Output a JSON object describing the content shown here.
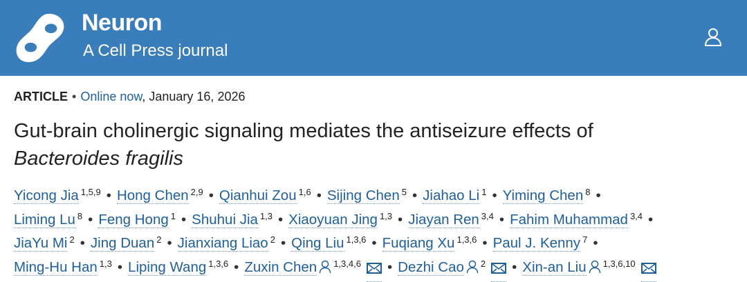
{
  "header": {
    "journal": "Neuron",
    "subtitle": "A Cell Press journal",
    "bg_color": "#3a7dbb",
    "user_icon": "user-icon"
  },
  "meta": {
    "type": "ARTICLE",
    "separator": "•",
    "online_label": "Online now",
    "date": ", January 16, 2026"
  },
  "title": {
    "main": "Gut-brain cholinergic signaling mediates the antiseizure effects of",
    "italic": "Bacteroides fragilis"
  },
  "author_lines": [
    [
      {
        "name": "Yicong Jia",
        "sup": "1,5,9"
      },
      {
        "name": "Hong Chen",
        "sup": "2,9"
      },
      {
        "name": "Qianhui Zou",
        "sup": "1,6"
      },
      {
        "name": "Sijing Chen",
        "sup": "5"
      },
      {
        "name": "Jiahao Li",
        "sup": "1"
      },
      {
        "name": "Yiming Chen",
        "sup": "8"
      }
    ],
    [
      {
        "name": "Liming Lu",
        "sup": "8"
      },
      {
        "name": "Feng Hong",
        "sup": "1"
      },
      {
        "name": "Shuhui Jia",
        "sup": "1,3"
      },
      {
        "name": "Xiaoyuan Jing",
        "sup": "1,3"
      },
      {
        "name": "Jiayan Ren",
        "sup": "3,4"
      },
      {
        "name": "Fahim Muhammad",
        "sup": "3,4"
      }
    ],
    [
      {
        "name": "JiaYu Mi",
        "sup": "2"
      },
      {
        "name": "Jing Duan",
        "sup": "2"
      },
      {
        "name": "Jianxiang Liao",
        "sup": "2"
      },
      {
        "name": "Qing Liu",
        "sup": "1,3,6"
      },
      {
        "name": "Fuqiang Xu",
        "sup": "1,3,6"
      },
      {
        "name": "Paul J. Kenny",
        "sup": "7"
      }
    ],
    [
      {
        "name": "Ming-Hu Han",
        "sup": "1,3"
      },
      {
        "name": "Liping Wang",
        "sup": "1,3,6"
      },
      {
        "name": "Zuxin Chen",
        "sup": "1,3,4,6",
        "profile": true,
        "email": true
      },
      {
        "name": "Dezhi Cao",
        "sup": "2",
        "profile": true,
        "email": true
      },
      {
        "name": "Xin-an Liu",
        "sup": "1,3,6,10",
        "profile": true,
        "email": true
      }
    ]
  ],
  "separator": "•"
}
